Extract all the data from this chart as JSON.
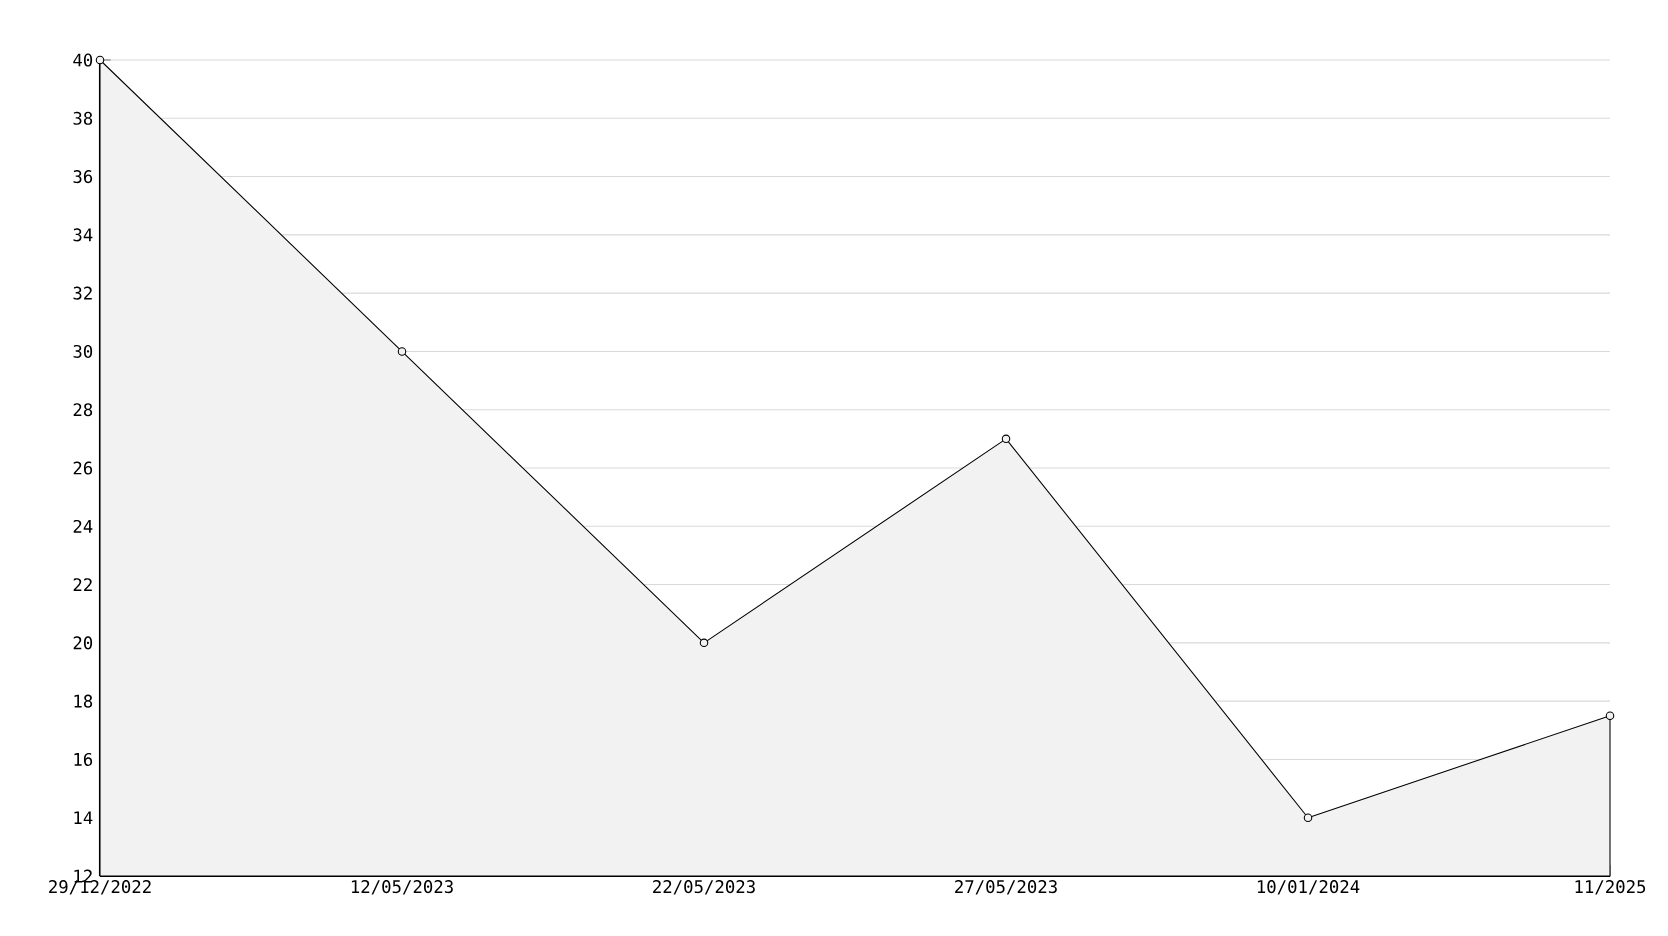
{
  "chart_data": {
    "type": "area",
    "categories": [
      "29/12/2022",
      "12/05/2023",
      "22/05/2023",
      "27/05/2023",
      "10/01/2024",
      "11/2025"
    ],
    "values": [
      40,
      30,
      20,
      27,
      14,
      17.5
    ],
    "color": "#000000",
    "ylim": [
      12,
      40
    ],
    "yticks": [
      12,
      14,
      16,
      18,
      20,
      22,
      24,
      26,
      28,
      30,
      32,
      34,
      36,
      38,
      40
    ],
    "grid": "y",
    "marker": "circle"
  }
}
